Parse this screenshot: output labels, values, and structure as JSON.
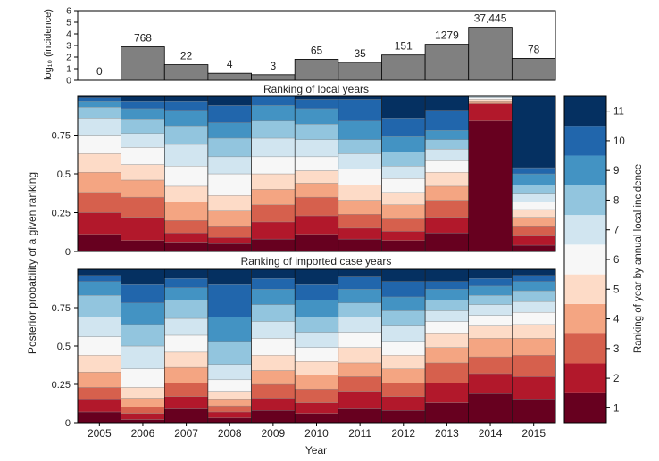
{
  "chart_data": {
    "type": "bar",
    "years": [
      "2005",
      "2006",
      "2007",
      "2008",
      "2009",
      "2010",
      "2011",
      "2012",
      "2013",
      "2014",
      "2015"
    ],
    "xlabel": "Year",
    "shared_ylabel": "Posterior probability of a given ranking",
    "incidence": {
      "ylabel": "log₁₀ (incidence)",
      "ylim": [
        0,
        6
      ],
      "yticks": [
        0,
        1,
        2,
        3,
        4,
        5,
        6
      ],
      "log_values": [
        0,
        2.885,
        1.342,
        0.602,
        0.477,
        1.813,
        1.544,
        2.179,
        3.107,
        4.573,
        1.892
      ],
      "labels": [
        "0",
        "768",
        "22",
        "4",
        "3",
        "65",
        "35",
        "151",
        "1279",
        "37,445",
        "78"
      ],
      "bar_color": "#808080"
    },
    "colorbar": {
      "label": "Ranking of year by annual local incidence",
      "ranks": [
        1,
        2,
        3,
        4,
        5,
        6,
        7,
        8,
        9,
        10,
        11
      ],
      "colors": [
        "#67001f",
        "#b2182b",
        "#d6604d",
        "#f4a582",
        "#fddbc7",
        "#f7f7f7",
        "#d1e5f0",
        "#92c5de",
        "#4393c3",
        "#2166ac",
        "#053061"
      ]
    },
    "panels": [
      {
        "title": "Ranking of local years",
        "ylim": [
          0,
          1
        ],
        "yticks": [
          "0",
          "0.25",
          "0.5",
          "0.75"
        ],
        "probabilities": [
          [
            0.11,
            0.14,
            0.13,
            0.13,
            0.12,
            0.12,
            0.11,
            0.07,
            0.04,
            0.02,
            0.01
          ],
          [
            0.07,
            0.15,
            0.13,
            0.11,
            0.1,
            0.11,
            0.09,
            0.09,
            0.07,
            0.05,
            0.03
          ],
          [
            0.06,
            0.06,
            0.08,
            0.12,
            0.1,
            0.13,
            0.14,
            0.12,
            0.1,
            0.06,
            0.03
          ],
          [
            0.05,
            0.04,
            0.07,
            0.1,
            0.1,
            0.14,
            0.11,
            0.12,
            0.1,
            0.11,
            0.06
          ],
          [
            0.08,
            0.11,
            0.11,
            0.1,
            0.1,
            0.11,
            0.12,
            0.11,
            0.1,
            0.06,
            0.0
          ],
          [
            0.11,
            0.12,
            0.12,
            0.09,
            0.08,
            0.09,
            0.11,
            0.1,
            0.1,
            0.06,
            0.02
          ],
          [
            0.08,
            0.07,
            0.09,
            0.09,
            0.1,
            0.1,
            0.1,
            0.09,
            0.12,
            0.14,
            0.02
          ],
          [
            0.07,
            0.06,
            0.08,
            0.09,
            0.08,
            0.09,
            0.08,
            0.09,
            0.1,
            0.12,
            0.14
          ],
          [
            0.12,
            0.1,
            0.11,
            0.09,
            0.09,
            0.08,
            0.07,
            0.06,
            0.06,
            0.13,
            0.09
          ],
          [
            0.84,
            0.11,
            0.01,
            0.01,
            0.01,
            0.01,
            0.01,
            0.0,
            0.0,
            0.0,
            0.0
          ],
          [
            0.04,
            0.06,
            0.06,
            0.06,
            0.05,
            0.05,
            0.05,
            0.06,
            0.07,
            0.04,
            0.46
          ]
        ]
      },
      {
        "title": "Ranking of imported case years",
        "ylim": [
          0,
          1
        ],
        "yticks": [
          "0",
          "0.25",
          "0.5",
          "0.75"
        ],
        "probabilities": [
          [
            0.07,
            0.08,
            0.08,
            0.1,
            0.11,
            0.12,
            0.13,
            0.14,
            0.09,
            0.04,
            0.04
          ],
          [
            0.02,
            0.04,
            0.04,
            0.06,
            0.07,
            0.12,
            0.15,
            0.14,
            0.14,
            0.12,
            0.1
          ],
          [
            0.09,
            0.08,
            0.09,
            0.1,
            0.1,
            0.11,
            0.11,
            0.12,
            0.08,
            0.06,
            0.06
          ],
          [
            0.03,
            0.04,
            0.04,
            0.04,
            0.05,
            0.08,
            0.1,
            0.15,
            0.16,
            0.21,
            0.1
          ],
          [
            0.08,
            0.08,
            0.09,
            0.09,
            0.1,
            0.11,
            0.11,
            0.11,
            0.1,
            0.07,
            0.06
          ],
          [
            0.06,
            0.07,
            0.09,
            0.09,
            0.09,
            0.09,
            0.1,
            0.1,
            0.11,
            0.1,
            0.1
          ],
          [
            0.09,
            0.11,
            0.1,
            0.09,
            0.1,
            0.1,
            0.1,
            0.09,
            0.09,
            0.08,
            0.05
          ],
          [
            0.08,
            0.09,
            0.09,
            0.09,
            0.09,
            0.09,
            0.1,
            0.1,
            0.09,
            0.1,
            0.08
          ],
          [
            0.13,
            0.13,
            0.13,
            0.1,
            0.09,
            0.08,
            0.07,
            0.07,
            0.07,
            0.05,
            0.08
          ],
          [
            0.19,
            0.13,
            0.11,
            0.12,
            0.08,
            0.07,
            0.07,
            0.06,
            0.06,
            0.05,
            0.06
          ],
          [
            0.15,
            0.15,
            0.14,
            0.11,
            0.09,
            0.08,
            0.07,
            0.07,
            0.06,
            0.04,
            0.04
          ]
        ]
      }
    ]
  }
}
